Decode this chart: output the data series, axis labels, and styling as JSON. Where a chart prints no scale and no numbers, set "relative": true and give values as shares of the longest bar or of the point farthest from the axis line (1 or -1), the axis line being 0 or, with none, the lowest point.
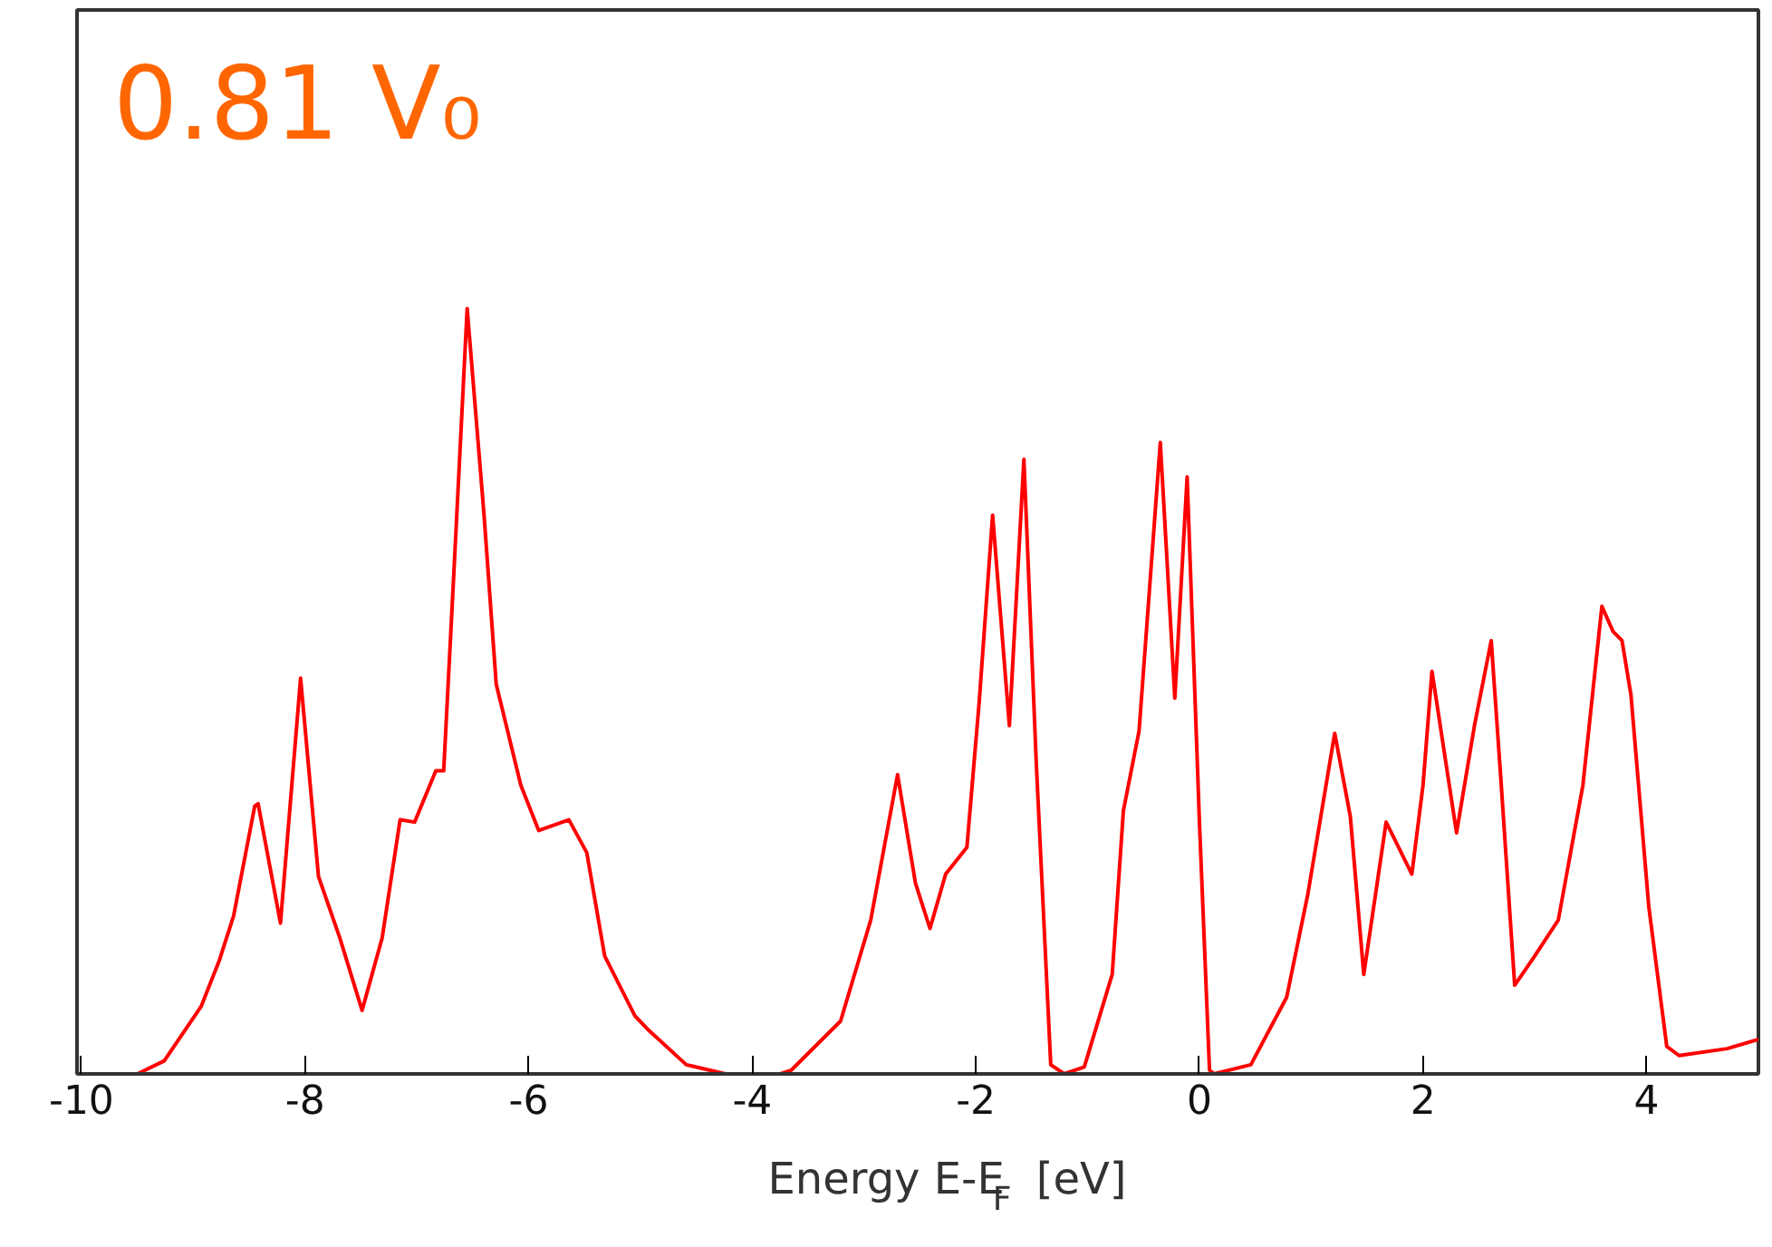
{
  "chart_data": {
    "type": "line",
    "relative": true,
    "xlabel": "Energy E-E$_{F}$ [eV]",
    "annotations": [
      "0.81 V₀"
    ],
    "xlim": [
      -10.04,
      5.0
    ],
    "xticks": [
      -10,
      -8,
      -6,
      -4,
      -2,
      0,
      2,
      4
    ],
    "grid": false,
    "marker": "none",
    "line_style": "solid",
    "series": [
      {
        "color": "#ff0000",
        "x": [
          -10.04,
          -9.5,
          -9.26,
          -8.93,
          -8.77,
          -8.64,
          -8.45,
          -8.42,
          -8.22,
          -8.04,
          -7.88,
          -7.69,
          -7.49,
          -7.31,
          -7.15,
          -7.02,
          -6.83,
          -6.76,
          -6.67,
          -6.55,
          -6.4,
          -6.29,
          -6.07,
          -5.91,
          -5.64,
          -5.48,
          -5.32,
          -5.05,
          -4.94,
          -4.59,
          -4.24,
          -3.75,
          -3.65,
          -3.21,
          -2.94,
          -2.7,
          -2.54,
          -2.41,
          -2.27,
          -2.08,
          -1.97,
          -1.85,
          -1.7,
          -1.57,
          -1.46,
          -1.33,
          -1.21,
          -1.03,
          -0.78,
          -0.68,
          -0.54,
          -0.35,
          -0.22,
          -0.11,
          0.0,
          0.09,
          0.13,
          0.46,
          0.78,
          0.97,
          1.21,
          1.35,
          1.47,
          1.67,
          1.9,
          2.0,
          2.08,
          2.3,
          2.46,
          2.61,
          2.7,
          2.82,
          2.99,
          3.21,
          3.43,
          3.6,
          3.7,
          3.78,
          3.86,
          4.02,
          4.18,
          4.29,
          4.72,
          5.0
        ],
        "values": [
          0,
          0,
          0.017,
          0.088,
          0.147,
          0.206,
          0.35,
          0.353,
          0.197,
          0.517,
          0.258,
          0.178,
          0.083,
          0.178,
          0.332,
          0.329,
          0.396,
          0.396,
          0.652,
          1.0,
          0.732,
          0.509,
          0.377,
          0.318,
          0.332,
          0.289,
          0.154,
          0.076,
          0.059,
          0.012,
          0,
          0,
          0.005,
          0.069,
          0.201,
          0.391,
          0.249,
          0.19,
          0.261,
          0.296,
          0.486,
          0.73,
          0.455,
          0.803,
          0.408,
          0.012,
          0,
          0.009,
          0.13,
          0.344,
          0.448,
          0.825,
          0.491,
          0.78,
          0.329,
          0.005,
          0,
          0.012,
          0.1,
          0.235,
          0.445,
          0.336,
          0.13,
          0.329,
          0.261,
          0.377,
          0.526,
          0.315,
          0.455,
          0.566,
          0.377,
          0.116,
          0.152,
          0.201,
          0.377,
          0.611,
          0.578,
          0.566,
          0.495,
          0.218,
          0.036,
          0.024,
          0.033,
          0.045
        ]
      }
    ]
  }
}
